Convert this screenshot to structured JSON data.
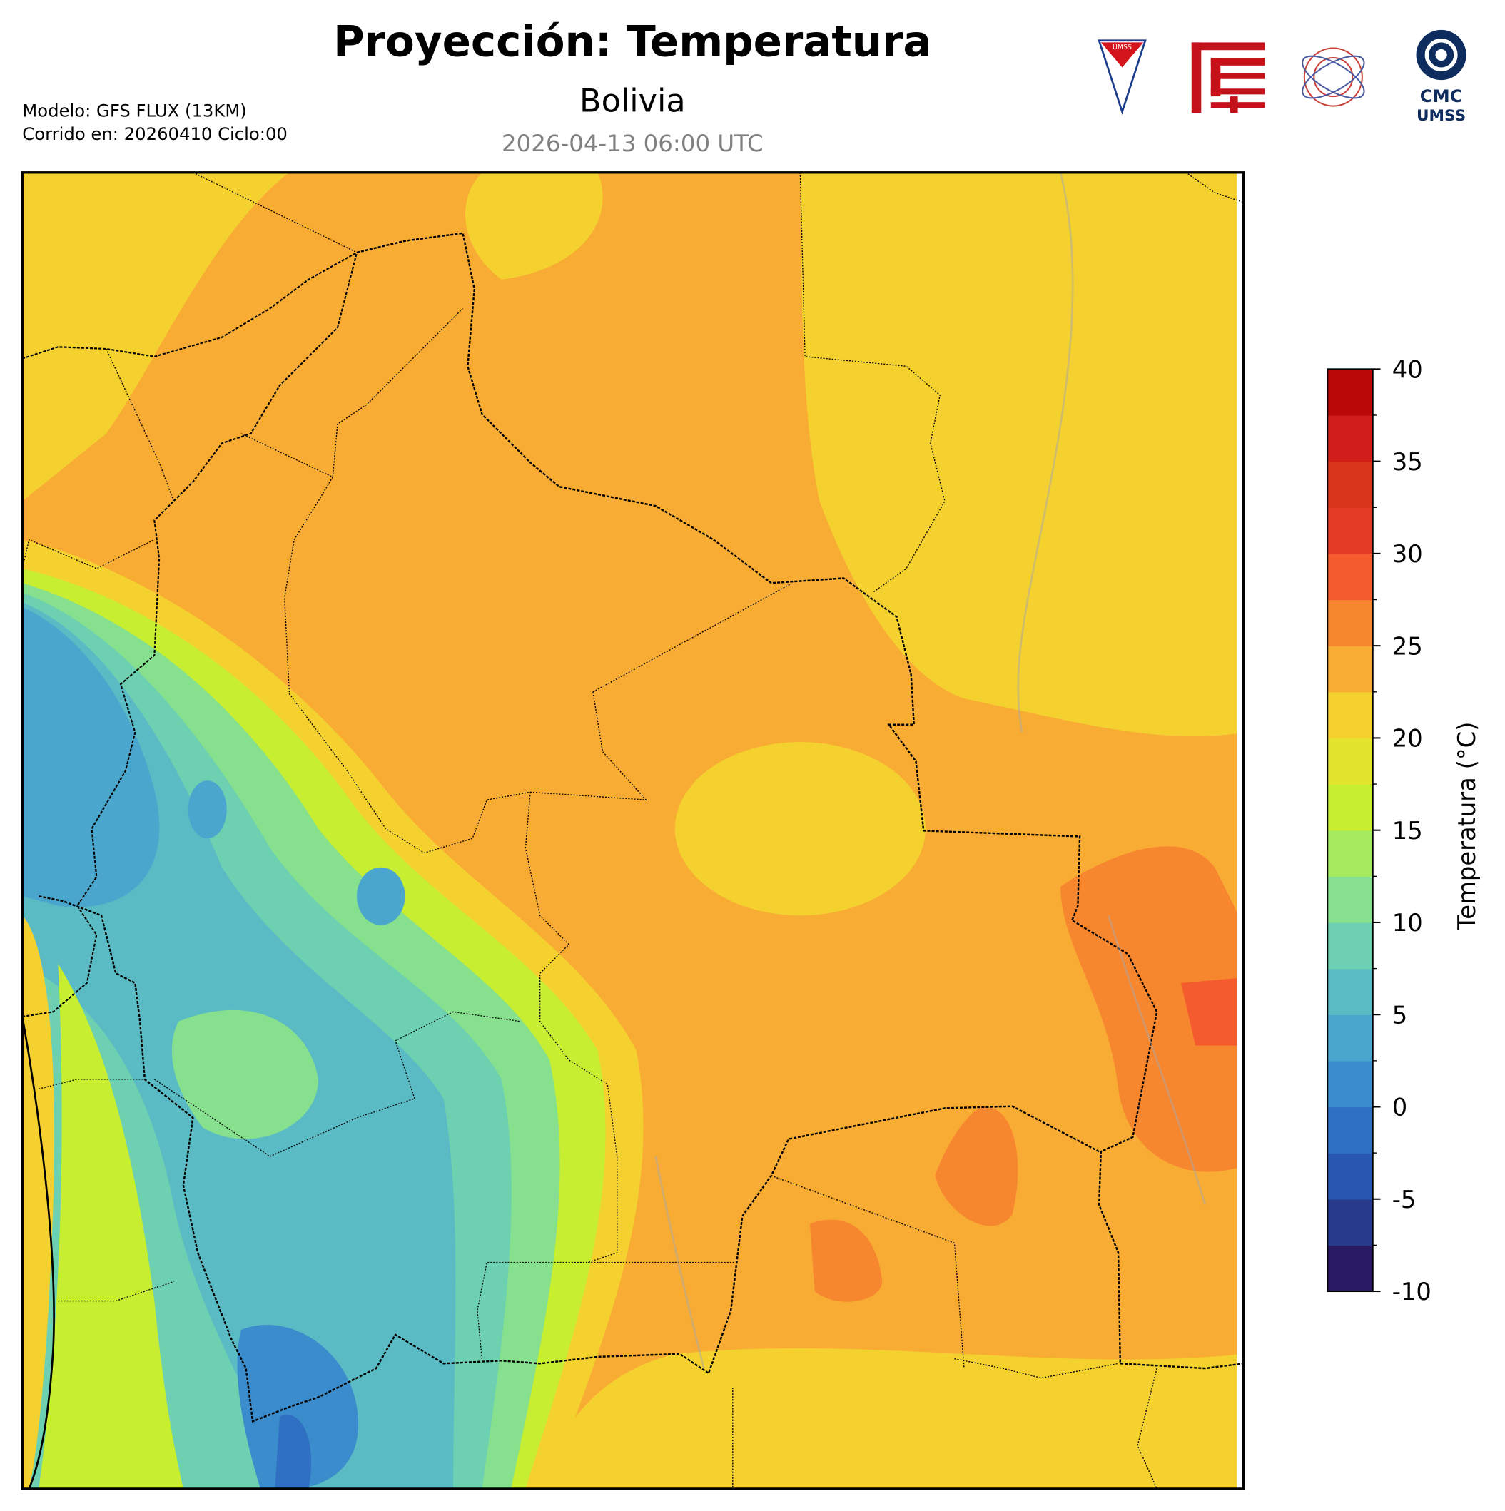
{
  "header": {
    "title": "Proyección: Temperatura",
    "subtitle": "Bolivia",
    "date": "2026-04-13 06:00 UTC",
    "model": "Modelo: GFS FLUX (13KM)",
    "run": "Corrido en: 20260410 Ciclo:00"
  },
  "logos": {
    "umss": "UMSS",
    "cmc": "CMC",
    "cmc_sub": "UMSS"
  },
  "colorbar": {
    "label": "Temperatura (°C)",
    "range": [
      -10,
      40
    ],
    "ticks": [
      -10,
      -5,
      0,
      5,
      10,
      15,
      20,
      25,
      30,
      35,
      40
    ],
    "colors": [
      "#2a1a63",
      "#273a8c",
      "#2856b0",
      "#2f70c2",
      "#3a8ccc",
      "#4aa6cc",
      "#5bbbc4",
      "#6dd0b0",
      "#86e08e",
      "#a6ea5e",
      "#c7ee30",
      "#e2e52c",
      "#f5d130",
      "#f8ac34",
      "#f7872f",
      "#f45b2e",
      "#e23b26",
      "#d9351c",
      "#d21e1a",
      "#b80808"
    ]
  }
}
